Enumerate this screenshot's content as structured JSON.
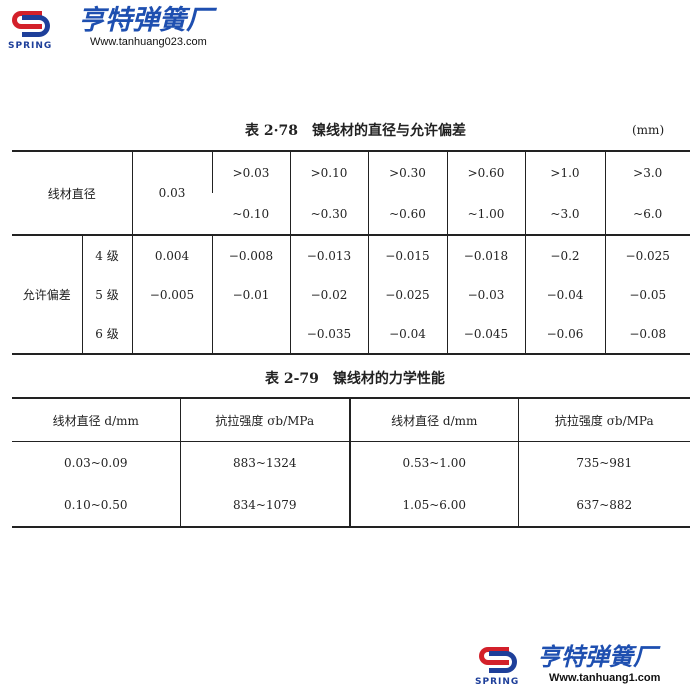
{
  "header_logo": {
    "brand": "亨特弹簧厂",
    "tag": "SPRING",
    "url": "Www.tanhuang023.com"
  },
  "table78": {
    "title": "表 2·78　镍线材的直径与允许偏差",
    "unit": "(mm)",
    "diameter_label": "线材直径",
    "diameters": [
      [
        "0.03",
        ""
      ],
      [
        ">0.03",
        "~0.10"
      ],
      [
        ">0.10",
        "~0.30"
      ],
      [
        ">0.30",
        "~0.60"
      ],
      [
        ">0.60",
        "~1.00"
      ],
      [
        ">1.0",
        "~3.0"
      ],
      [
        ">3.0",
        "~6.0"
      ]
    ],
    "tolerance_label": "允许偏差",
    "rows": [
      {
        "grade": "4 级",
        "values": [
          "0.004",
          "−0.008",
          "−0.013",
          "−0.015",
          "−0.018",
          "−0.2",
          "−0.025"
        ]
      },
      {
        "grade": "5 级",
        "values": [
          "−0.005",
          "−0.01",
          "−0.02",
          "−0.025",
          "−0.03",
          "−0.04",
          "−0.05"
        ]
      },
      {
        "grade": "6 级",
        "values": [
          "",
          "",
          "−0.035",
          "−0.04",
          "−0.045",
          "−0.06",
          "−0.08"
        ]
      }
    ]
  },
  "table79": {
    "title": "表 2-79　镍线材的力学性能",
    "headers": [
      "线材直径 d/mm",
      "抗拉强度 σb/MPa",
      "线材直径 d/mm",
      "抗拉强度 σb/MPa"
    ],
    "rows": [
      [
        "0.03~0.09",
        "883~1324",
        "0.53~1.00",
        "735~981"
      ],
      [
        "0.10~0.50",
        "834~1079",
        "1.05~6.00",
        "637~882"
      ]
    ]
  },
  "footer_logo": {
    "brand": "亨特弹簧厂",
    "tag": "SPRING",
    "url": "Www.tanhuang1.com"
  },
  "colors": {
    "brand_blue": "#1e4fb0",
    "brand_red": "#d3202a"
  }
}
